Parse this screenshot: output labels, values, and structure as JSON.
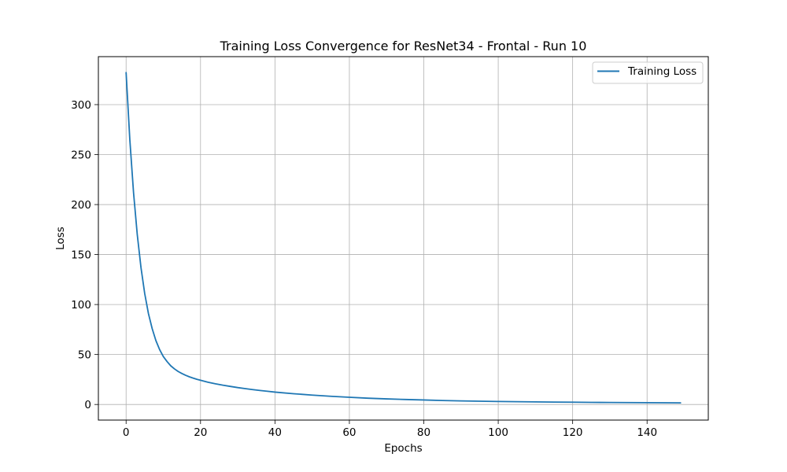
{
  "chart_data": {
    "type": "line",
    "title": "Training Loss Convergence for ResNet34 - Frontal - Run 10",
    "xlabel": "Epochs",
    "ylabel": "Loss",
    "xlim": [
      -7.45,
      156.45
    ],
    "ylim": [
      -15.6,
      348.0
    ],
    "xticks": [
      0,
      20,
      40,
      60,
      80,
      100,
      120,
      140
    ],
    "yticks": [
      0,
      50,
      100,
      150,
      200,
      250,
      300
    ],
    "xtick_labels": [
      "0",
      "20",
      "40",
      "60",
      "80",
      "100",
      "120",
      "140"
    ],
    "ytick_labels": [
      "0",
      "50",
      "100",
      "150",
      "200",
      "250",
      "300"
    ],
    "grid": true,
    "legend": {
      "position": "top-right",
      "entries": [
        "Training Loss"
      ]
    },
    "series": [
      {
        "name": "Training Loss",
        "color": "#1f77b4",
        "x": [
          0,
          1,
          2,
          3,
          4,
          5,
          6,
          7,
          8,
          9,
          10,
          11,
          12,
          13,
          14,
          15,
          16,
          17,
          18,
          19,
          20,
          22,
          24,
          26,
          28,
          30,
          32,
          34,
          36,
          38,
          40,
          45,
          50,
          55,
          60,
          65,
          70,
          75,
          80,
          85,
          90,
          95,
          100,
          105,
          110,
          115,
          120,
          125,
          130,
          135,
          140,
          145,
          149
        ],
        "values": [
          332,
          265,
          212,
          170,
          137,
          111,
          91,
          76,
          64,
          55,
          48,
          43,
          38.7,
          35.6,
          33,
          31,
          29.2,
          27.7,
          26.4,
          25.2,
          24.2,
          22.3,
          20.7,
          19.3,
          18.1,
          16.9,
          15.9,
          14.9,
          14,
          13.2,
          12.4,
          10.8,
          9.4,
          8.2,
          7.2,
          6.3,
          5.6,
          5.0,
          4.5,
          4.0,
          3.6,
          3.3,
          3.0,
          2.8,
          2.6,
          2.4,
          2.3,
          2.1,
          2.0,
          1.9,
          1.8,
          1.7,
          1.6
        ]
      }
    ]
  }
}
